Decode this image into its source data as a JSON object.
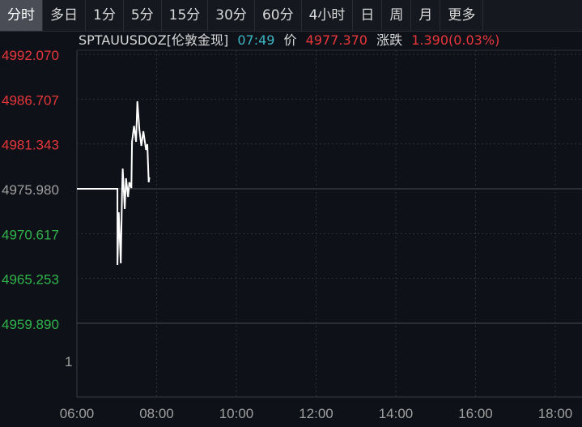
{
  "tabs": [
    {
      "label": "分时",
      "active": true
    },
    {
      "label": "多日"
    },
    {
      "label": "1分"
    },
    {
      "label": "5分"
    },
    {
      "label": "15分"
    },
    {
      "label": "30分"
    },
    {
      "label": "60分"
    },
    {
      "label": "4小时"
    },
    {
      "label": "日"
    },
    {
      "label": "周"
    },
    {
      "label": "月"
    },
    {
      "label": "更多"
    }
  ],
  "header": {
    "symbol": "SPTAUUSDOZ[伦敦金现]",
    "time": "07:49",
    "price_label": "价",
    "price": "4977.370",
    "change_label": "涨跌",
    "change": "1.390(0.03%)"
  },
  "colors": {
    "up": "#e8373b",
    "down": "#2fb34a",
    "neutral": "#a0a0a0",
    "line": "#ffffff",
    "time": "#3fb6c4"
  },
  "chart_data": {
    "type": "line",
    "y_ticks": [
      {
        "label": "4992.070",
        "value": 4992.07,
        "color": "up"
      },
      {
        "label": "4986.707",
        "value": 4986.707,
        "color": "up"
      },
      {
        "label": "4981.343",
        "value": 4981.343,
        "color": "up"
      },
      {
        "label": "4975.980",
        "value": 4975.98,
        "color": "neutral"
      },
      {
        "label": "4970.617",
        "value": 4970.617,
        "color": "down"
      },
      {
        "label": "4965.253",
        "value": 4965.253,
        "color": "down"
      },
      {
        "label": "4959.890",
        "value": 4959.89,
        "color": "down"
      },
      {
        "label": "1",
        "value": null,
        "color": "neutral"
      }
    ],
    "x_ticks": [
      "06:00",
      "08:00",
      "10:00",
      "12:00",
      "14:00",
      "16:00",
      "18:00"
    ],
    "xlim": [
      "06:00",
      "18:40"
    ],
    "ylim": [
      4959.89,
      4992.07
    ],
    "reference": 4975.98,
    "series": [
      {
        "points": [
          [
            "06:00",
            4975.98
          ],
          [
            "07:01",
            4975.98
          ],
          [
            "07:01",
            4966.87
          ],
          [
            "07:03",
            4973.17
          ],
          [
            "07:06",
            4967.06
          ],
          [
            "07:08",
            4975.6
          ],
          [
            "07:09",
            4978.4
          ],
          [
            "07:12",
            4973.56
          ],
          [
            "07:14",
            4977.24
          ],
          [
            "07:17",
            4975.01
          ],
          [
            "07:19",
            4976.76
          ],
          [
            "07:22",
            4976.08
          ],
          [
            "07:23",
            4981.6
          ],
          [
            "07:26",
            4983.5
          ],
          [
            "07:29",
            4981.6
          ],
          [
            "07:31",
            4986.45
          ],
          [
            "07:34",
            4983.06
          ],
          [
            "07:37",
            4981.12
          ],
          [
            "07:40",
            4982.86
          ],
          [
            "07:44",
            4980.63
          ],
          [
            "07:46",
            4981.31
          ],
          [
            "07:48",
            4976.76
          ],
          [
            "07:49",
            4977.37
          ]
        ]
      }
    ]
  }
}
